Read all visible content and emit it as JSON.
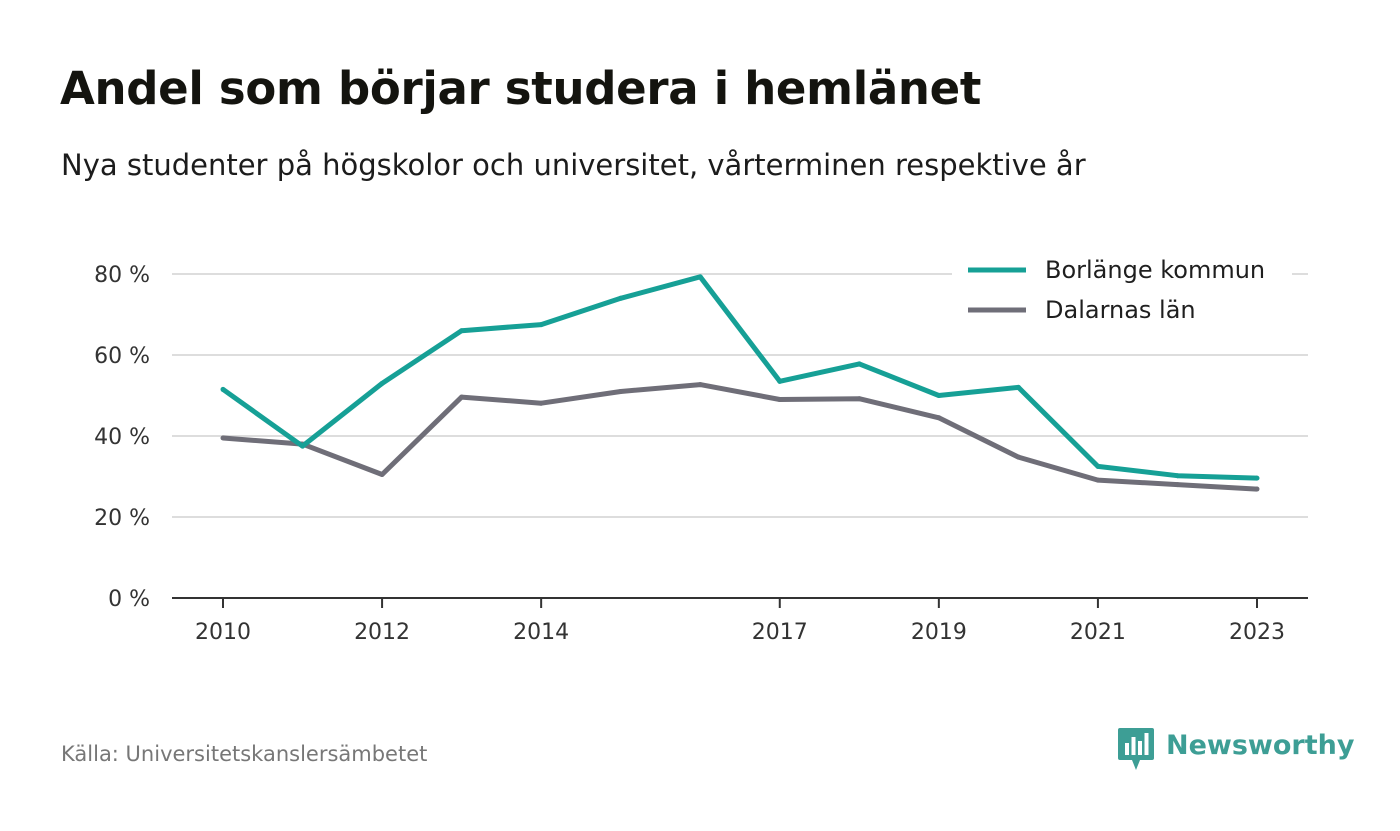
{
  "header": {
    "title": "Andel som börjar studera i hemlänet",
    "subtitle": "Nya studenter på högskolor och universitet, vårterminen respektive år"
  },
  "footer": {
    "source": "Källa: Universitetskanslersämbetet",
    "brand": "Newsworthy"
  },
  "colors": {
    "borlange": "#16a096",
    "dalarna": "#6f6e78",
    "grid": "#dddddd",
    "axis": "#333333",
    "brand": "#3d9e95"
  },
  "chart_data": {
    "type": "line",
    "title": "Andel som börjar studera i hemlänet",
    "subtitle": "Nya studenter på högskolor och universitet, vårterminen respektive år",
    "xlabel": "",
    "ylabel": "",
    "x": [
      2010,
      2011,
      2012,
      2013,
      2014,
      2015,
      2016,
      2017,
      2018,
      2019,
      2020,
      2021,
      2022,
      2023
    ],
    "x_ticks": [
      "2010",
      "2012",
      "2014",
      "2017",
      "2019",
      "2021",
      "2023"
    ],
    "y_ticks": [
      {
        "value": 0,
        "label": "0 %"
      },
      {
        "value": 20,
        "label": "20 %"
      },
      {
        "value": 40,
        "label": "40 %"
      },
      {
        "value": 60,
        "label": "60 %"
      },
      {
        "value": 80,
        "label": "80 %"
      }
    ],
    "ylim": [
      0,
      80
    ],
    "grid": true,
    "legend_position": "top-right",
    "series": [
      {
        "name": "Borlänge kommun",
        "color": "#16a096",
        "values": [
          51.5,
          37.5,
          53,
          66,
          67.5,
          74,
          79.3,
          53.5,
          57.8,
          50,
          52,
          32.5,
          30.2,
          29.6
        ]
      },
      {
        "name": "Dalarnas län",
        "color": "#6f6e78",
        "values": [
          39.5,
          38,
          30.5,
          49.6,
          48.1,
          51,
          52.7,
          49,
          49.2,
          44.5,
          34.8,
          29.1,
          28,
          26.9
        ]
      }
    ]
  }
}
